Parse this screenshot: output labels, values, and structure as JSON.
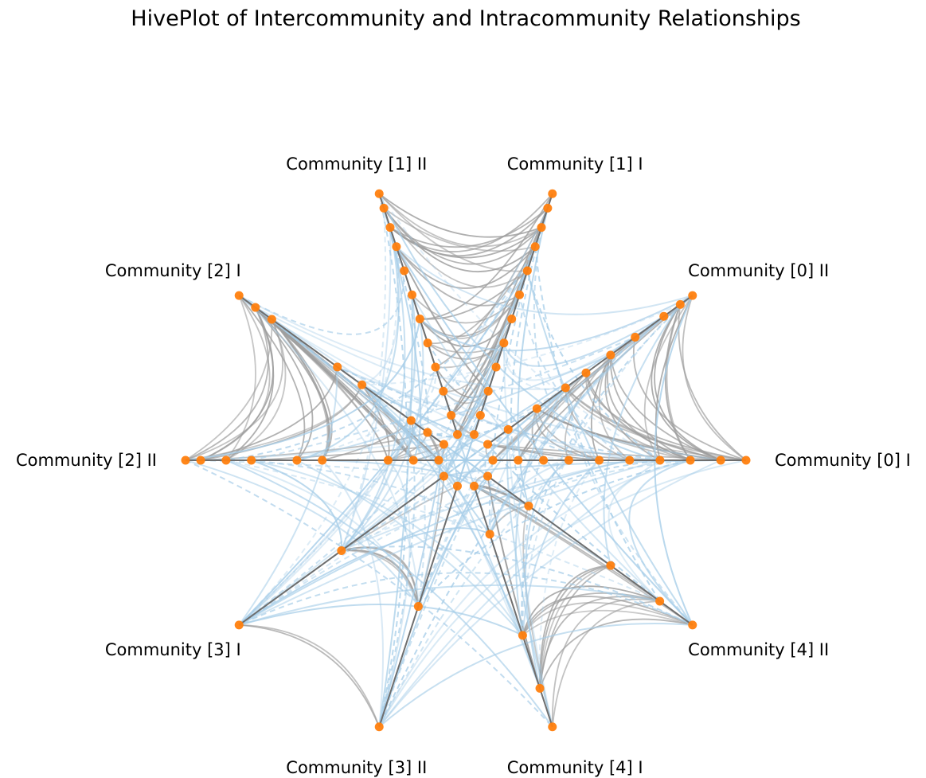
{
  "title": "HivePlot of Intercommunity and Intracommunity Relationships",
  "colors": {
    "axis": "#6e6e6e",
    "node": "#ff7f0e",
    "intra_edge": "#9e9e9e",
    "inter_edge": "#a6cde8"
  },
  "axes": [
    {
      "label": "Community [0] I",
      "angle": 0,
      "nodes": [
        0.0,
        0.1,
        0.2,
        0.3,
        0.42,
        0.54,
        0.66,
        0.78,
        0.9,
        1.0
      ]
    },
    {
      "label": "Community [0] II",
      "angle": 36,
      "nodes": [
        0.0,
        0.1,
        0.24,
        0.38,
        0.48,
        0.6,
        0.72,
        0.86,
        0.94,
        1.0
      ]
    },
    {
      "label": "Community [1] I",
      "angle": 72,
      "nodes": [
        0.0,
        0.08,
        0.18,
        0.28,
        0.38,
        0.48,
        0.58,
        0.68,
        0.78,
        0.86,
        0.94,
        1.0
      ]
    },
    {
      "label": "Community [1] II",
      "angle": 108,
      "nodes": [
        0.0,
        0.08,
        0.18,
        0.28,
        0.38,
        0.48,
        0.58,
        0.68,
        0.78,
        0.86,
        0.94,
        1.0
      ]
    },
    {
      "label": "Community [2] I",
      "angle": 144,
      "nodes": [
        0.0,
        0.08,
        0.16,
        0.4,
        0.52,
        0.84,
        0.92,
        1.0
      ]
    },
    {
      "label": "Community [2] II",
      "angle": 180,
      "nodes": [
        0.0,
        0.1,
        0.2,
        0.46,
        0.56,
        0.74,
        0.84,
        0.94,
        1.0
      ]
    },
    {
      "label": "Community [3] I",
      "angle": 216,
      "nodes": [
        0.0,
        0.5,
        1.0
      ]
    },
    {
      "label": "Community [3] II",
      "angle": 252,
      "nodes": [
        0.0,
        0.5,
        1.0
      ]
    },
    {
      "label": "Community [4] I",
      "angle": 288,
      "nodes": [
        0.0,
        0.2,
        0.62,
        0.84,
        1.0
      ]
    },
    {
      "label": "Community [4] II",
      "angle": 324,
      "nodes": [
        0.0,
        0.2,
        0.6,
        0.84,
        1.0
      ]
    }
  ]
}
